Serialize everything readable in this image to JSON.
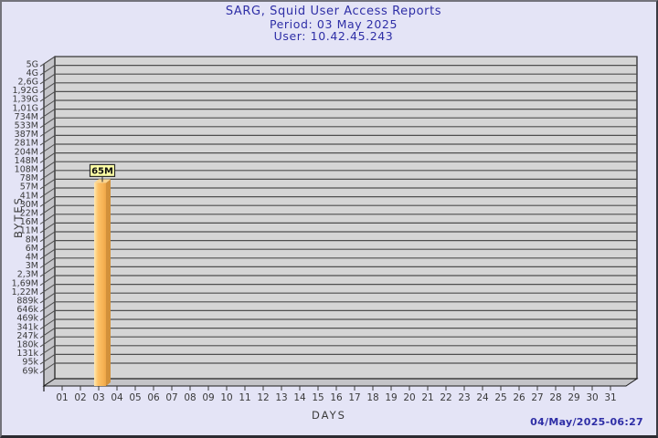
{
  "header": {
    "title": "SARG, Squid User Access Reports",
    "period": "Period: 03 May 2025",
    "user": "User: 10.42.45.243"
  },
  "footer": {
    "generated": "04/May/2025-06:27"
  },
  "chart_data": {
    "type": "bar",
    "title": "SARG, Squid User Access Reports",
    "subtitle": [
      "Period: 03 May 2025",
      "User: 10.42.45.243"
    ],
    "xlabel": "DAYS",
    "ylabel": "BYTES",
    "y_scale": "log",
    "y_tick_labels": [
      "5G",
      "4G",
      "2,6G",
      "1,92G",
      "1,39G",
      "1,01G",
      "734M",
      "533M",
      "387M",
      "281M",
      "204M",
      "148M",
      "108M",
      "78M",
      "57M",
      "41M",
      "30M",
      "22M",
      "16M",
      "11M",
      "8M",
      "6M",
      "4M",
      "3M",
      "2,3M",
      "1,69M",
      "1,22M",
      "889k",
      "646k",
      "469k",
      "341k",
      "247k",
      "180k",
      "131k",
      "95k",
      "69k"
    ],
    "x_tick_labels": [
      "01",
      "02",
      "03",
      "04",
      "05",
      "06",
      "07",
      "08",
      "09",
      "10",
      "11",
      "12",
      "13",
      "14",
      "15",
      "16",
      "17",
      "18",
      "19",
      "20",
      "21",
      "22",
      "23",
      "24",
      "25",
      "26",
      "27",
      "28",
      "29",
      "30",
      "31"
    ],
    "bars": [
      {
        "x": "03",
        "label": "65M"
      }
    ],
    "legend": null,
    "grid": "horizontal",
    "colors": {
      "background": "#e4e4f6",
      "plot_bg": "#d5d5d5",
      "wall": "#c4c4c8",
      "grid": "#4f4f4f",
      "frame": "#1a1a1a",
      "bar_main": "#fdc167",
      "bar_light": "#ffe9b8",
      "bar_dark": "#eda648",
      "bar_side": "#d2913b",
      "bar_top": "#fcd690",
      "value_box_bg": "#feffa6",
      "value_box_border": "#2a2a2a",
      "title_text": "#2e2ea6",
      "axis_text": "#3a3a3a"
    }
  }
}
